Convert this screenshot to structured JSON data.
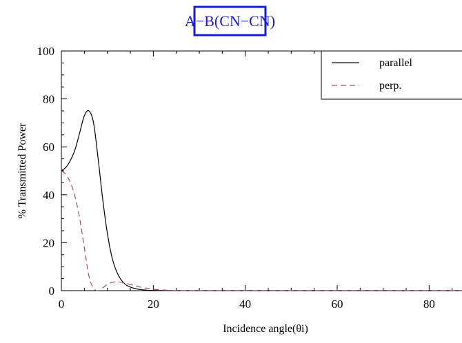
{
  "chart_data": {
    "type": "line",
    "title": "A−B(CN−CN)",
    "xlabel": "Incidence angle(θi)",
    "ylabel": "% Transmitted Power",
    "xlim": [
      0,
      90
    ],
    "ylim": [
      0,
      100
    ],
    "xticks": [
      0,
      20,
      40,
      60,
      80
    ],
    "yticks": [
      0,
      20,
      40,
      60,
      80,
      100
    ],
    "grid": false,
    "legend_position": "top-right",
    "colors": {
      "title": "#1a1ad6",
      "title_border": "#1a1ad6"
    },
    "series": [
      {
        "name": "parallel",
        "style": "solid",
        "color": "#000000",
        "x": [
          0,
          1,
          2,
          3,
          4,
          5,
          6,
          7,
          8,
          9,
          10,
          11,
          12,
          13,
          14,
          15,
          16,
          17,
          18,
          19,
          20,
          22,
          25,
          30,
          40,
          50,
          60,
          70,
          80,
          90
        ],
        "y": [
          50,
          51.5,
          54.5,
          59,
          66,
          73,
          75,
          70,
          55,
          38,
          24,
          14,
          8,
          4.5,
          2.5,
          1.5,
          0.9,
          0.5,
          0.3,
          0.15,
          0.1,
          0.05,
          0,
          0,
          0,
          0,
          0,
          0,
          0,
          0
        ]
      },
      {
        "name": "perp.",
        "style": "dashed",
        "color": "#a0505a",
        "x": [
          0,
          1,
          2,
          3,
          4,
          5,
          6,
          7,
          8,
          9,
          10,
          11,
          12,
          13,
          14,
          15,
          16,
          17,
          18,
          19,
          20,
          21,
          22,
          23,
          24,
          25,
          30,
          40,
          60,
          90
        ],
        "y": [
          50,
          48.5,
          45,
          39,
          30,
          18,
          6,
          1,
          0,
          1.2,
          2.6,
          3.4,
          3.7,
          3.5,
          3.1,
          2.6,
          2.1,
          1.6,
          1.2,
          0.9,
          0.6,
          0.4,
          0.3,
          0.2,
          0.1,
          0.05,
          0,
          0,
          0,
          0
        ]
      }
    ]
  }
}
